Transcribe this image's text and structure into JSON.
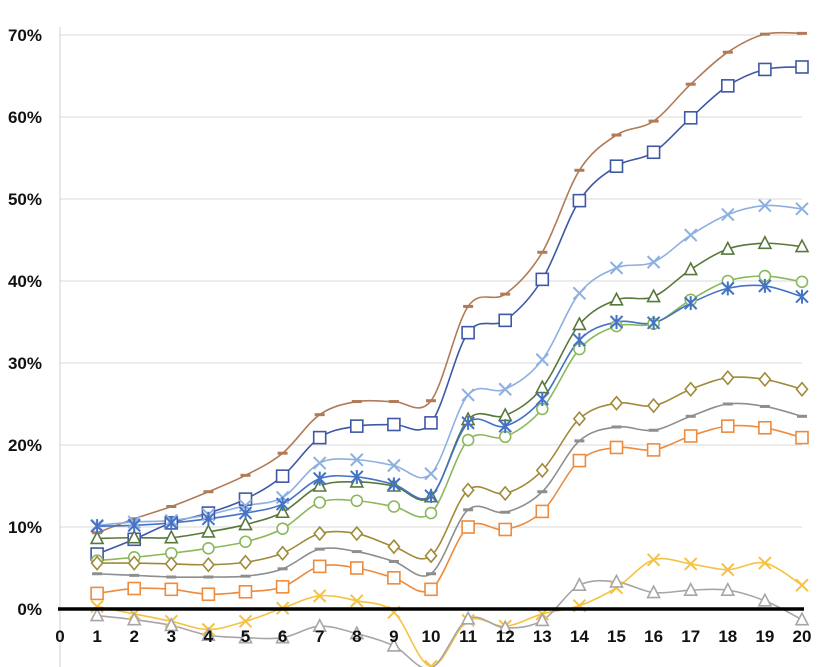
{
  "chart_data": {
    "type": "line",
    "title": "",
    "xlabel": "",
    "ylabel": "",
    "x": [
      1,
      2,
      3,
      4,
      5,
      6,
      7,
      8,
      9,
      10,
      11,
      12,
      13,
      14,
      15,
      16,
      17,
      18,
      19,
      20
    ],
    "x_ticks": [
      "0",
      "1",
      "2",
      "3",
      "4",
      "5",
      "6",
      "7",
      "8",
      "9",
      "10",
      "11",
      "12",
      "13",
      "14",
      "15",
      "16",
      "17",
      "18",
      "19",
      "20"
    ],
    "xlim": [
      0,
      20
    ],
    "y_ticks": [
      "0%",
      "10%",
      "20%",
      "30%",
      "40%",
      "50%",
      "60%",
      "70%"
    ],
    "ylim": [
      -6,
      71
    ],
    "y_unit": "percent",
    "grid": "horizontal",
    "legend": "none",
    "series": [
      {
        "marker": "dash",
        "color": "#b07b56",
        "values": [
          9.3,
          11.0,
          12.5,
          14.3,
          16.3,
          19.0,
          23.7,
          25.3,
          25.3,
          25.4,
          36.9,
          38.4,
          43.5,
          53.5,
          57.8,
          59.5,
          64.0,
          67.9,
          70.1,
          70.2
        ]
      },
      {
        "marker": "square",
        "color": "#3f58a5",
        "values": [
          6.7,
          8.5,
          10.5,
          11.7,
          13.4,
          16.2,
          20.9,
          22.3,
          22.5,
          22.7,
          33.7,
          35.2,
          40.2,
          49.8,
          54.0,
          55.7,
          59.9,
          63.8,
          65.8,
          66.1
        ]
      },
      {
        "marker": "x",
        "color": "#8db0e0",
        "values": [
          10.2,
          10.6,
          10.8,
          11.5,
          12.6,
          13.6,
          17.8,
          18.2,
          17.5,
          16.5,
          26.1,
          26.8,
          30.4,
          38.5,
          41.6,
          42.3,
          45.6,
          48.1,
          49.2,
          48.8
        ]
      },
      {
        "marker": "triangle",
        "color": "#58783b",
        "values": [
          8.6,
          8.7,
          8.7,
          9.4,
          10.3,
          11.8,
          15.0,
          15.5,
          15.0,
          13.7,
          23.1,
          23.6,
          27.0,
          34.7,
          37.7,
          38.1,
          41.4,
          43.9,
          44.6,
          44.2
        ]
      },
      {
        "marker": "circle",
        "color": "#8cb85c",
        "values": [
          5.9,
          6.3,
          6.8,
          7.4,
          8.2,
          9.8,
          13.0,
          13.2,
          12.5,
          11.7,
          20.6,
          21.0,
          24.4,
          31.7,
          34.5,
          34.8,
          37.7,
          40.0,
          40.6,
          39.9
        ]
      },
      {
        "marker": "star",
        "color": "#4472c4",
        "values": [
          10.1,
          10.2,
          10.5,
          11.0,
          11.7,
          12.8,
          15.9,
          16.1,
          15.2,
          13.8,
          22.7,
          22.3,
          25.6,
          32.8,
          35.0,
          34.9,
          37.3,
          39.1,
          39.4,
          38.1
        ]
      },
      {
        "marker": "diamond",
        "color": "#a08a3a",
        "values": [
          5.6,
          5.6,
          5.5,
          5.4,
          5.7,
          6.8,
          9.2,
          9.2,
          7.6,
          6.5,
          14.5,
          14.1,
          16.9,
          23.2,
          25.1,
          24.8,
          26.8,
          28.2,
          28.0,
          26.8
        ]
      },
      {
        "marker": "dash",
        "color": "#8e8e8e",
        "values": [
          4.3,
          4.1,
          3.9,
          3.9,
          4.0,
          4.9,
          7.3,
          7.0,
          5.8,
          4.3,
          12.1,
          11.8,
          14.3,
          20.5,
          22.2,
          21.8,
          23.5,
          25.0,
          24.7,
          23.5
        ]
      },
      {
        "marker": "square",
        "color": "#ed8b3e",
        "values": [
          1.9,
          2.5,
          2.4,
          1.8,
          2.1,
          2.7,
          5.2,
          5.0,
          3.8,
          2.4,
          10.0,
          9.7,
          11.9,
          18.1,
          19.7,
          19.4,
          21.1,
          22.3,
          22.1,
          20.9
        ]
      },
      {
        "marker": "x",
        "color": "#f5c242",
        "values": [
          0.3,
          -0.6,
          -1.5,
          -2.5,
          -1.5,
          0.1,
          1.6,
          1.0,
          -0.4,
          -7.0,
          -1.4,
          -2.1,
          -0.6,
          0.4,
          2.6,
          6.0,
          5.5,
          4.8,
          5.6,
          2.9
        ]
      },
      {
        "marker": "triangle",
        "color": "#a6a6a6",
        "values": [
          -0.8,
          -1.3,
          -2.0,
          -3.2,
          -3.5,
          -3.5,
          -2.1,
          -3.0,
          -4.5,
          -7.2,
          -1.2,
          -2.3,
          -1.4,
          2.9,
          3.3,
          2.0,
          2.3,
          2.3,
          1.0,
          -1.3
        ]
      }
    ]
  }
}
